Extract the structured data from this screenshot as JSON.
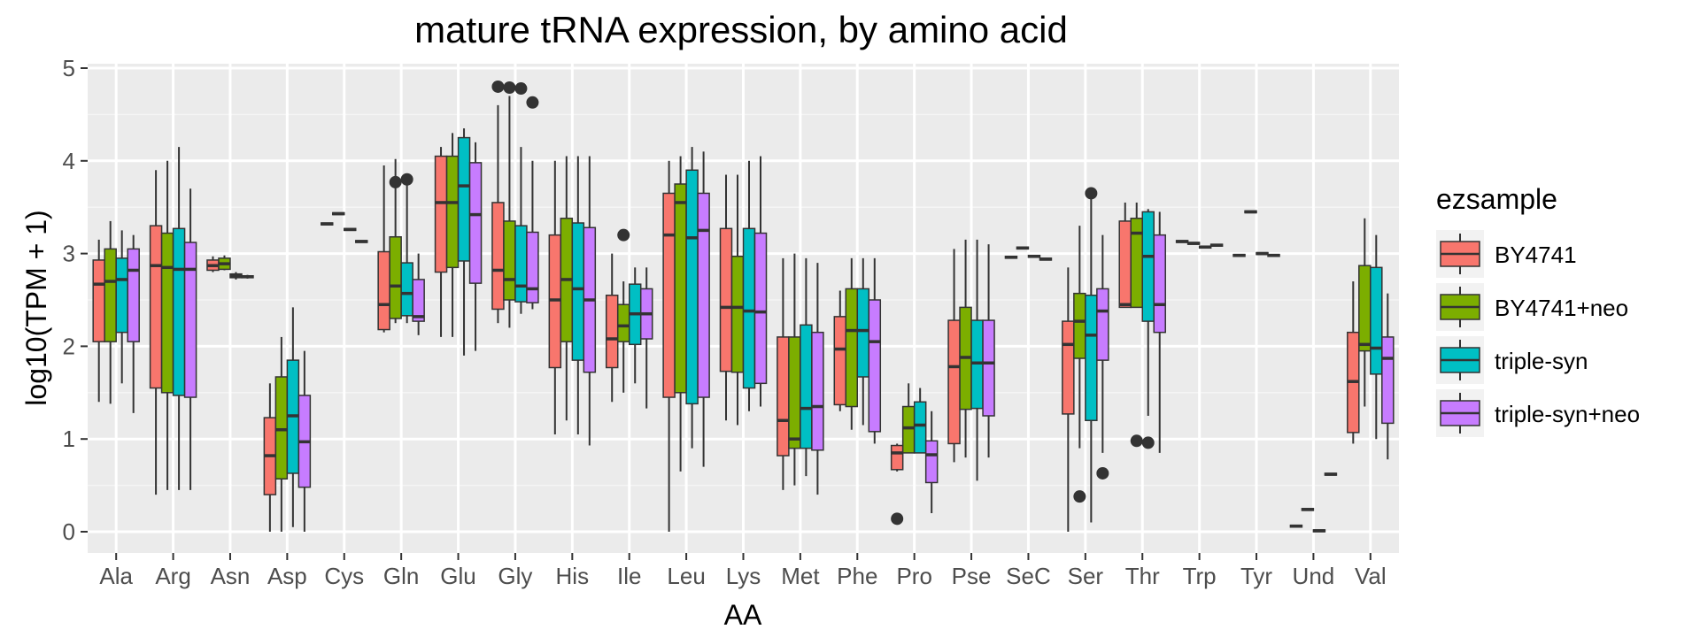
{
  "chart_data": {
    "type": "boxplot",
    "title": "mature tRNA expression, by amino acid",
    "xlabel": "AA",
    "ylabel": "log10(TPM + 1)",
    "ylim": [
      -0.25,
      5.1
    ],
    "yticks": [
      "0",
      "1",
      "2",
      "3",
      "4",
      "5"
    ],
    "ytick_values": [
      0,
      1,
      2,
      3,
      4,
      5
    ],
    "categories": [
      "Ala",
      "Arg",
      "Asn",
      "Asp",
      "Cys",
      "Gln",
      "Glu",
      "Gly",
      "His",
      "Ile",
      "Leu",
      "Lys",
      "Met",
      "Phe",
      "Pro",
      "Pse",
      "SeC",
      "Ser",
      "Thr",
      "Trp",
      "Tyr",
      "Und",
      "Val"
    ],
    "grid": true,
    "legend_position": "right",
    "legend": {
      "title": "ezsample",
      "entries": [
        "BY4741",
        "BY4741+neo",
        "triple-syn",
        "triple-syn+neo"
      ]
    },
    "colors": {
      "BY4741": "#F8766D",
      "BY4741+neo": "#7CAE00",
      "triple-syn": "#00BFC4",
      "triple-syn+neo": "#C77CFF",
      "panel": "#EBEBEB",
      "grid": "#FFFFFF"
    },
    "series": [
      {
        "name": "BY4741",
        "boxes": [
          {
            "lo": 1.4,
            "q1": 2.05,
            "med": 2.67,
            "q3": 2.93,
            "hi": 3.15,
            "out": []
          },
          {
            "lo": 0.4,
            "q1": 1.55,
            "med": 2.87,
            "q3": 3.3,
            "hi": 3.9,
            "out": []
          },
          {
            "lo": 2.8,
            "q1": 2.82,
            "med": 2.87,
            "q3": 2.93,
            "hi": 2.97,
            "out": []
          },
          {
            "lo": 0.0,
            "q1": 0.4,
            "med": 0.82,
            "q3": 1.23,
            "hi": 1.6,
            "out": []
          },
          {
            "lo": 3.31,
            "q1": 3.31,
            "med": 3.32,
            "q3": 3.33,
            "hi": 3.33,
            "out": []
          },
          {
            "lo": 2.15,
            "q1": 2.18,
            "med": 2.45,
            "q3": 3.02,
            "hi": 3.95,
            "out": []
          },
          {
            "lo": 2.1,
            "q1": 2.8,
            "med": 3.55,
            "q3": 4.05,
            "hi": 4.15,
            "out": []
          },
          {
            "lo": 2.25,
            "q1": 2.4,
            "med": 2.82,
            "q3": 3.55,
            "hi": 4.6,
            "out": [
              4.8
            ]
          },
          {
            "lo": 1.05,
            "q1": 1.77,
            "med": 2.5,
            "q3": 3.2,
            "hi": 4.0,
            "out": []
          },
          {
            "lo": 1.4,
            "q1": 1.77,
            "med": 2.08,
            "q3": 2.55,
            "hi": 3.0,
            "out": []
          },
          {
            "lo": 0.0,
            "q1": 1.45,
            "med": 3.2,
            "q3": 3.65,
            "hi": 4.0,
            "out": []
          },
          {
            "lo": 1.2,
            "q1": 1.73,
            "med": 2.42,
            "q3": 3.27,
            "hi": 3.85,
            "out": []
          },
          {
            "lo": 0.45,
            "q1": 0.82,
            "med": 1.2,
            "q3": 2.1,
            "hi": 2.95,
            "out": []
          },
          {
            "lo": 1.3,
            "q1": 1.37,
            "med": 1.97,
            "q3": 2.32,
            "hi": 2.6,
            "out": []
          },
          {
            "lo": 0.65,
            "q1": 0.67,
            "med": 0.85,
            "q3": 0.93,
            "hi": 0.95,
            "out": [
              0.14
            ]
          },
          {
            "lo": 0.75,
            "q1": 0.95,
            "med": 1.78,
            "q3": 2.28,
            "hi": 3.05,
            "out": []
          },
          {
            "lo": 2.95,
            "q1": 2.95,
            "med": 2.96,
            "q3": 2.97,
            "hi": 2.97,
            "out": []
          },
          {
            "lo": 0.0,
            "q1": 1.27,
            "med": 2.02,
            "q3": 2.27,
            "hi": 2.85,
            "out": []
          },
          {
            "lo": 2.42,
            "q1": 2.42,
            "med": 2.45,
            "q3": 3.35,
            "hi": 3.55,
            "out": []
          },
          {
            "lo": 3.12,
            "q1": 3.12,
            "med": 3.13,
            "q3": 3.14,
            "hi": 3.14,
            "out": []
          },
          {
            "lo": 2.97,
            "q1": 2.97,
            "med": 2.98,
            "q3": 2.99,
            "hi": 2.99,
            "out": []
          },
          {
            "lo": 0.05,
            "q1": 0.05,
            "med": 0.06,
            "q3": 0.07,
            "hi": 0.07,
            "out": []
          },
          {
            "lo": 0.95,
            "q1": 1.07,
            "med": 1.62,
            "q3": 2.15,
            "hi": 2.7,
            "out": []
          }
        ]
      },
      {
        "name": "BY4741+neo",
        "boxes": [
          {
            "lo": 1.38,
            "q1": 2.05,
            "med": 2.7,
            "q3": 3.05,
            "hi": 3.35,
            "out": []
          },
          {
            "lo": 0.45,
            "q1": 1.5,
            "med": 2.85,
            "q3": 3.22,
            "hi": 4.0,
            "out": []
          },
          {
            "lo": 2.82,
            "q1": 2.83,
            "med": 2.89,
            "q3": 2.95,
            "hi": 2.98,
            "out": []
          },
          {
            "lo": 0.0,
            "q1": 0.57,
            "med": 1.1,
            "q3": 1.67,
            "hi": 2.1,
            "out": []
          },
          {
            "lo": 3.42,
            "q1": 3.42,
            "med": 3.43,
            "q3": 3.44,
            "hi": 3.44,
            "out": []
          },
          {
            "lo": 2.25,
            "q1": 2.3,
            "med": 2.65,
            "q3": 3.18,
            "hi": 4.02,
            "out": [
              3.77
            ]
          },
          {
            "lo": 2.1,
            "q1": 2.85,
            "med": 3.55,
            "q3": 4.05,
            "hi": 4.3,
            "out": []
          },
          {
            "lo": 2.2,
            "q1": 2.5,
            "med": 2.72,
            "q3": 3.35,
            "hi": 4.7,
            "out": [
              4.79
            ]
          },
          {
            "lo": 1.2,
            "q1": 2.05,
            "med": 2.72,
            "q3": 3.38,
            "hi": 4.05,
            "out": []
          },
          {
            "lo": 1.5,
            "q1": 2.05,
            "med": 2.22,
            "q3": 2.45,
            "hi": 2.7,
            "out": [
              3.2
            ]
          },
          {
            "lo": 0.65,
            "q1": 1.5,
            "med": 3.55,
            "q3": 3.75,
            "hi": 4.05,
            "out": []
          },
          {
            "lo": 1.15,
            "q1": 1.72,
            "med": 2.42,
            "q3": 2.97,
            "hi": 3.85,
            "out": []
          },
          {
            "lo": 0.5,
            "q1": 0.9,
            "med": 1.0,
            "q3": 2.1,
            "hi": 3.0,
            "out": []
          },
          {
            "lo": 1.1,
            "q1": 1.35,
            "med": 2.17,
            "q3": 2.62,
            "hi": 2.95,
            "out": []
          },
          {
            "lo": 0.85,
            "q1": 0.85,
            "med": 1.12,
            "q3": 1.35,
            "hi": 1.6,
            "out": []
          },
          {
            "lo": 0.8,
            "q1": 1.32,
            "med": 1.88,
            "q3": 2.42,
            "hi": 3.15,
            "out": []
          },
          {
            "lo": 3.05,
            "q1": 3.05,
            "med": 3.06,
            "q3": 3.07,
            "hi": 3.07,
            "out": []
          },
          {
            "lo": 0.9,
            "q1": 1.87,
            "med": 2.27,
            "q3": 2.57,
            "hi": 3.3,
            "out": [
              0.38
            ]
          },
          {
            "lo": 2.42,
            "q1": 2.42,
            "med": 3.22,
            "q3": 3.38,
            "hi": 3.55,
            "out": [
              0.98
            ]
          },
          {
            "lo": 3.1,
            "q1": 3.1,
            "med": 3.11,
            "q3": 3.12,
            "hi": 3.12,
            "out": []
          },
          {
            "lo": 3.44,
            "q1": 3.44,
            "med": 3.45,
            "q3": 3.46,
            "hi": 3.46,
            "out": []
          },
          {
            "lo": 0.23,
            "q1": 0.23,
            "med": 0.24,
            "q3": 0.25,
            "hi": 0.25,
            "out": []
          },
          {
            "lo": 1.35,
            "q1": 1.95,
            "med": 2.02,
            "q3": 2.87,
            "hi": 3.38,
            "out": []
          }
        ]
      },
      {
        "name": "triple-syn",
        "boxes": [
          {
            "lo": 1.6,
            "q1": 2.15,
            "med": 2.72,
            "q3": 2.95,
            "hi": 3.25,
            "out": []
          },
          {
            "lo": 0.45,
            "q1": 1.47,
            "med": 2.83,
            "q3": 3.27,
            "hi": 4.15,
            "out": []
          },
          {
            "lo": 2.72,
            "q1": 2.74,
            "med": 2.76,
            "q3": 2.78,
            "hi": 2.8,
            "out": []
          },
          {
            "lo": 0.05,
            "q1": 0.63,
            "med": 1.25,
            "q3": 1.85,
            "hi": 2.42,
            "out": []
          },
          {
            "lo": 3.25,
            "q1": 3.25,
            "med": 3.26,
            "q3": 3.27,
            "hi": 3.27,
            "out": []
          },
          {
            "lo": 2.25,
            "q1": 2.33,
            "med": 2.57,
            "q3": 2.9,
            "hi": 3.77,
            "out": [
              3.8
            ]
          },
          {
            "lo": 1.9,
            "q1": 2.92,
            "med": 3.73,
            "q3": 4.25,
            "hi": 4.35,
            "out": []
          },
          {
            "lo": 2.35,
            "q1": 2.48,
            "med": 2.65,
            "q3": 3.3,
            "hi": 4.15,
            "out": [
              4.78
            ]
          },
          {
            "lo": 1.05,
            "q1": 1.85,
            "med": 2.62,
            "q3": 3.33,
            "hi": 4.05,
            "out": []
          },
          {
            "lo": 1.6,
            "q1": 2.02,
            "med": 2.35,
            "q3": 2.67,
            "hi": 2.85,
            "out": []
          },
          {
            "lo": 0.9,
            "q1": 1.38,
            "med": 3.17,
            "q3": 3.9,
            "hi": 4.15,
            "out": []
          },
          {
            "lo": 1.3,
            "q1": 1.55,
            "med": 2.38,
            "q3": 3.27,
            "hi": 4.0,
            "out": []
          },
          {
            "lo": 0.6,
            "q1": 0.9,
            "med": 1.33,
            "q3": 2.23,
            "hi": 2.95,
            "out": []
          },
          {
            "lo": 1.15,
            "q1": 1.67,
            "med": 2.17,
            "q3": 2.62,
            "hi": 2.95,
            "out": []
          },
          {
            "lo": 0.85,
            "q1": 0.85,
            "med": 1.15,
            "q3": 1.4,
            "hi": 1.55,
            "out": []
          },
          {
            "lo": 0.55,
            "q1": 1.33,
            "med": 1.82,
            "q3": 2.28,
            "hi": 3.15,
            "out": []
          },
          {
            "lo": 2.96,
            "q1": 2.96,
            "med": 2.97,
            "q3": 2.98,
            "hi": 2.98,
            "out": []
          },
          {
            "lo": 0.1,
            "q1": 1.2,
            "med": 2.12,
            "q3": 2.55,
            "hi": 3.65,
            "out": [
              3.65
            ]
          },
          {
            "lo": 1.25,
            "q1": 2.27,
            "med": 2.97,
            "q3": 3.45,
            "hi": 3.48,
            "out": [
              0.96
            ]
          },
          {
            "lo": 3.06,
            "q1": 3.06,
            "med": 3.07,
            "q3": 3.08,
            "hi": 3.08,
            "out": []
          },
          {
            "lo": 2.99,
            "q1": 2.99,
            "med": 3.0,
            "q3": 3.01,
            "hi": 3.01,
            "out": []
          },
          {
            "lo": 0.0,
            "q1": 0.0,
            "med": 0.01,
            "q3": 0.02,
            "hi": 0.02,
            "out": []
          },
          {
            "lo": 1.0,
            "q1": 1.7,
            "med": 1.98,
            "q3": 2.85,
            "hi": 3.2,
            "out": []
          }
        ]
      },
      {
        "name": "triple-syn+neo",
        "boxes": [
          {
            "lo": 1.28,
            "q1": 2.05,
            "med": 2.82,
            "q3": 3.05,
            "hi": 3.2,
            "out": []
          },
          {
            "lo": 0.45,
            "q1": 1.45,
            "med": 2.83,
            "q3": 3.12,
            "hi": 3.7,
            "out": []
          },
          {
            "lo": 2.73,
            "q1": 2.74,
            "med": 2.75,
            "q3": 2.76,
            "hi": 2.77,
            "out": []
          },
          {
            "lo": 0.0,
            "q1": 0.48,
            "med": 0.97,
            "q3": 1.47,
            "hi": 1.95,
            "out": []
          },
          {
            "lo": 3.12,
            "q1": 3.12,
            "med": 3.13,
            "q3": 3.14,
            "hi": 3.14,
            "out": []
          },
          {
            "lo": 2.12,
            "q1": 2.27,
            "med": 2.32,
            "q3": 2.72,
            "hi": 3.0,
            "out": []
          },
          {
            "lo": 1.95,
            "q1": 2.68,
            "med": 3.42,
            "q3": 3.98,
            "hi": 4.2,
            "out": []
          },
          {
            "lo": 2.4,
            "q1": 2.47,
            "med": 2.62,
            "q3": 3.23,
            "hi": 4.0,
            "out": [
              4.63
            ]
          },
          {
            "lo": 0.93,
            "q1": 1.72,
            "med": 2.5,
            "q3": 3.28,
            "hi": 4.05,
            "out": []
          },
          {
            "lo": 1.33,
            "q1": 2.08,
            "med": 2.35,
            "q3": 2.62,
            "hi": 2.85,
            "out": []
          },
          {
            "lo": 0.7,
            "q1": 1.45,
            "med": 3.25,
            "q3": 3.65,
            "hi": 4.1,
            "out": []
          },
          {
            "lo": 1.35,
            "q1": 1.6,
            "med": 2.37,
            "q3": 3.22,
            "hi": 4.05,
            "out": []
          },
          {
            "lo": 0.4,
            "q1": 0.88,
            "med": 1.35,
            "q3": 2.15,
            "hi": 2.9,
            "out": []
          },
          {
            "lo": 0.95,
            "q1": 1.08,
            "med": 2.05,
            "q3": 2.5,
            "hi": 2.95,
            "out": []
          },
          {
            "lo": 0.2,
            "q1": 0.53,
            "med": 0.83,
            "q3": 0.98,
            "hi": 1.3,
            "out": []
          },
          {
            "lo": 0.8,
            "q1": 1.25,
            "med": 1.82,
            "q3": 2.28,
            "hi": 3.1,
            "out": []
          },
          {
            "lo": 2.93,
            "q1": 2.93,
            "med": 2.94,
            "q3": 2.95,
            "hi": 2.95,
            "out": []
          },
          {
            "lo": 0.85,
            "q1": 1.85,
            "med": 2.38,
            "q3": 2.62,
            "hi": 3.2,
            "out": [
              0.63
            ]
          },
          {
            "lo": 0.85,
            "q1": 2.15,
            "med": 2.45,
            "q3": 3.2,
            "hi": 3.45,
            "out": []
          },
          {
            "lo": 3.08,
            "q1": 3.08,
            "med": 3.09,
            "q3": 3.1,
            "hi": 3.1,
            "out": []
          },
          {
            "lo": 2.97,
            "q1": 2.97,
            "med": 2.98,
            "q3": 2.99,
            "hi": 2.99,
            "out": []
          },
          {
            "lo": 0.61,
            "q1": 0.61,
            "med": 0.62,
            "q3": 0.63,
            "hi": 0.63,
            "out": []
          },
          {
            "lo": 0.78,
            "q1": 1.17,
            "med": 1.87,
            "q3": 2.1,
            "hi": 2.57,
            "out": []
          }
        ]
      }
    ]
  }
}
